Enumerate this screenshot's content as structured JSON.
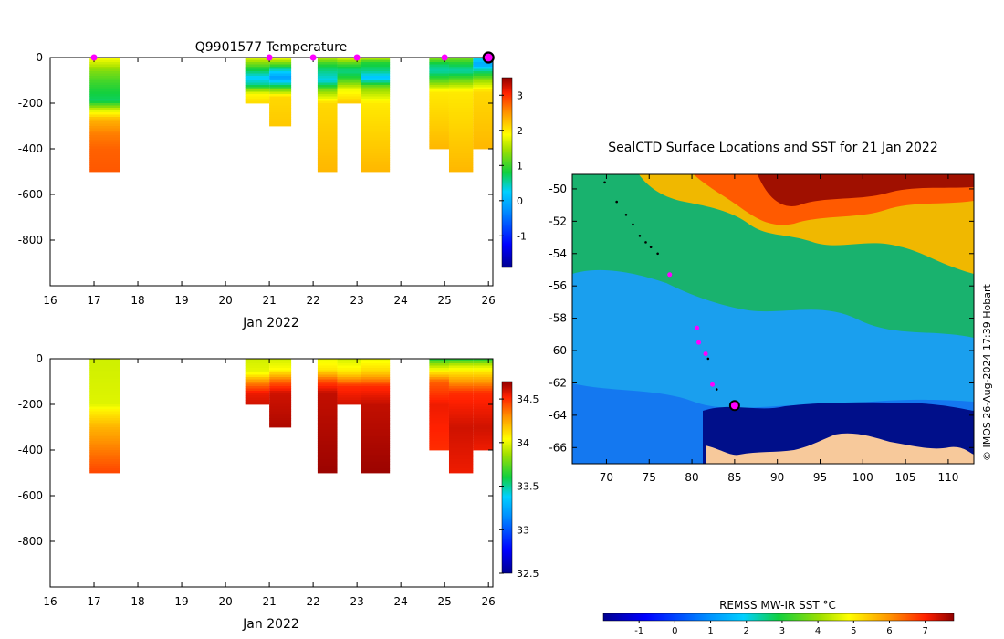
{
  "colors": {
    "land": "#f7c99b",
    "marker": "#ff00ff",
    "frame": "#000000"
  },
  "chart_data": [
    {
      "id": "temperature-section",
      "type": "heatmap",
      "title": "Q9901577  Temperature",
      "xlabel": "Jan 2022",
      "ylabel": "",
      "xlim": [
        16,
        26.1
      ],
      "ylim": [
        -1000,
        0
      ],
      "xticks": [
        "16",
        "17",
        "18",
        "19",
        "20",
        "21",
        "22",
        "23",
        "24",
        "25",
        "26"
      ],
      "yticks": [
        "0",
        "-200",
        "-400",
        "-600",
        "-800"
      ],
      "colorbar": {
        "min": -1.9,
        "max": 3.5,
        "ticks": [
          "-1",
          "0",
          "1",
          "2",
          "3"
        ]
      },
      "profile_markers_x": [
        17.0,
        21.0,
        22.0,
        23.0,
        25.0
      ],
      "latest_marker_x": 26.0,
      "profiles": [
        {
          "x0": 16.9,
          "x1": 17.6,
          "depth": 500,
          "levels": [
            [
              0,
              1.9
            ],
            [
              -30,
              1.6
            ],
            [
              -60,
              1.3
            ],
            [
              -110,
              1.0
            ],
            [
              -160,
              0.8
            ],
            [
              -190,
              0.7
            ],
            [
              -230,
              1.7
            ],
            [
              -270,
              2.3
            ],
            [
              -330,
              2.6
            ],
            [
              -400,
              2.75
            ],
            [
              -500,
              2.8
            ]
          ]
        },
        {
          "x0": 20.45,
          "x1": 21.0,
          "depth": 200,
          "levels": [
            [
              0,
              1.8
            ],
            [
              -30,
              1.2
            ],
            [
              -60,
              0.7
            ],
            [
              -90,
              0.2
            ],
            [
              -120,
              0.6
            ],
            [
              -160,
              1.9
            ],
            [
              -200,
              2.1
            ]
          ]
        },
        {
          "x0": 21.0,
          "x1": 21.5,
          "depth": 300,
          "levels": [
            [
              0,
              1.9
            ],
            [
              -30,
              1.1
            ],
            [
              -60,
              0.3
            ],
            [
              -90,
              -0.2
            ],
            [
              -130,
              0.9
            ],
            [
              -170,
              2.1
            ],
            [
              -300,
              2.2
            ]
          ]
        },
        {
          "x0": 22.1,
          "x1": 22.55,
          "depth": 500,
          "levels": [
            [
              0,
              1.6
            ],
            [
              -30,
              0.9
            ],
            [
              -60,
              0.6
            ],
            [
              -100,
              0.3
            ],
            [
              -150,
              1.4
            ],
            [
              -200,
              2.1
            ],
            [
              -500,
              2.3
            ]
          ]
        },
        {
          "x0": 22.55,
          "x1": 23.1,
          "depth": 200,
          "levels": [
            [
              0,
              1.8
            ],
            [
              -30,
              1.0
            ],
            [
              -60,
              0.6
            ],
            [
              -90,
              0.9
            ],
            [
              -140,
              1.8
            ],
            [
              -200,
              2.2
            ]
          ]
        },
        {
          "x0": 23.1,
          "x1": 23.75,
          "depth": 500,
          "levels": [
            [
              0,
              1.7
            ],
            [
              -20,
              0.9
            ],
            [
              -60,
              0.6
            ],
            [
              -90,
              0.1
            ],
            [
              -130,
              1.3
            ],
            [
              -200,
              2.0
            ],
            [
              -500,
              2.3
            ]
          ]
        },
        {
          "x0": 24.65,
          "x1": 25.1,
          "depth": 400,
          "levels": [
            [
              0,
              1.4
            ],
            [
              -30,
              0.7
            ],
            [
              -60,
              0.5
            ],
            [
              -100,
              1.1
            ],
            [
              -150,
              2.0
            ],
            [
              -400,
              2.3
            ]
          ]
        },
        {
          "x0": 25.1,
          "x1": 25.65,
          "depth": 500,
          "levels": [
            [
              0,
              1.3
            ],
            [
              -30,
              0.8
            ],
            [
              -60,
              0.5
            ],
            [
              -100,
              1.2
            ],
            [
              -150,
              2.0
            ],
            [
              -500,
              2.3
            ]
          ]
        },
        {
          "x0": 25.65,
          "x1": 26.1,
          "depth": 400,
          "levels": [
            [
              0,
              0.4
            ],
            [
              -30,
              -0.1
            ],
            [
              -60,
              0.6
            ],
            [
              -100,
              1.4
            ],
            [
              -150,
              2.1
            ],
            [
              -400,
              2.3
            ]
          ]
        }
      ]
    },
    {
      "id": "salinity-section",
      "type": "heatmap",
      "title": "",
      "xlabel": "Jan 2022",
      "ylabel": "",
      "xlim": [
        16,
        26.1
      ],
      "ylim": [
        -1000,
        0
      ],
      "xticks": [
        "16",
        "17",
        "18",
        "19",
        "20",
        "21",
        "22",
        "23",
        "24",
        "25",
        "26"
      ],
      "yticks": [
        "0",
        "-200",
        "-400",
        "-600",
        "-800"
      ],
      "colorbar": {
        "min": 32.5,
        "max": 34.7,
        "ticks": [
          "32.5",
          "33",
          "33.5",
          "34",
          "34.5"
        ]
      },
      "profiles": [
        {
          "x0": 16.9,
          "x1": 17.6,
          "depth": 500,
          "levels": [
            [
              0,
              33.95
            ],
            [
              -200,
              33.98
            ],
            [
              -230,
              34.08
            ],
            [
              -300,
              34.22
            ],
            [
              -380,
              34.32
            ],
            [
              -450,
              34.4
            ],
            [
              -500,
              34.45
            ]
          ]
        },
        {
          "x0": 20.45,
          "x1": 21.0,
          "depth": 200,
          "levels": [
            [
              0,
              33.95
            ],
            [
              -60,
              34.0
            ],
            [
              -100,
              34.3
            ],
            [
              -150,
              34.55
            ],
            [
              -200,
              34.6
            ]
          ]
        },
        {
          "x0": 21.0,
          "x1": 21.5,
          "depth": 300,
          "levels": [
            [
              0,
              33.95
            ],
            [
              -50,
              34.05
            ],
            [
              -100,
              34.4
            ],
            [
              -150,
              34.6
            ],
            [
              -300,
              34.65
            ]
          ]
        },
        {
          "x0": 22.1,
          "x1": 22.55,
          "depth": 500,
          "levels": [
            [
              0,
              34.0
            ],
            [
              -50,
              34.1
            ],
            [
              -100,
              34.45
            ],
            [
              -150,
              34.62
            ],
            [
              -500,
              34.68
            ]
          ]
        },
        {
          "x0": 22.55,
          "x1": 23.1,
          "depth": 200,
          "levels": [
            [
              0,
              33.95
            ],
            [
              -60,
              34.1
            ],
            [
              -120,
              34.5
            ],
            [
              -200,
              34.6
            ]
          ]
        },
        {
          "x0": 23.1,
          "x1": 23.75,
          "depth": 500,
          "levels": [
            [
              0,
              34.0
            ],
            [
              -60,
              34.15
            ],
            [
              -120,
              34.5
            ],
            [
              -200,
              34.62
            ],
            [
              -500,
              34.68
            ]
          ]
        },
        {
          "x0": 24.65,
          "x1": 25.1,
          "depth": 400,
          "levels": [
            [
              0,
              33.6
            ],
            [
              -30,
              33.9
            ],
            [
              -60,
              34.1
            ],
            [
              -100,
              34.4
            ],
            [
              -200,
              34.55
            ],
            [
              -400,
              34.5
            ]
          ]
        },
        {
          "x0": 25.1,
          "x1": 25.65,
          "depth": 500,
          "levels": [
            [
              0,
              33.6
            ],
            [
              -30,
              33.95
            ],
            [
              -80,
              34.2
            ],
            [
              -150,
              34.5
            ],
            [
              -300,
              34.6
            ],
            [
              -500,
              34.55
            ]
          ]
        },
        {
          "x0": 25.65,
          "x1": 26.1,
          "depth": 400,
          "levels": [
            [
              0,
              33.6
            ],
            [
              -30,
              33.95
            ],
            [
              -80,
              34.2
            ],
            [
              -150,
              34.5
            ],
            [
              -300,
              34.6
            ],
            [
              -400,
              34.55
            ]
          ]
        }
      ]
    },
    {
      "id": "sst-map",
      "type": "heatmap",
      "title": "SealCTD Surface Locations and SST for 21 Jan 2022",
      "xlabel": "",
      "ylabel": "",
      "xlim": [
        66,
        113
      ],
      "ylim": [
        -67,
        -49.1
      ],
      "xticks": [
        "70",
        "75",
        "80",
        "85",
        "90",
        "95",
        "100",
        "105",
        "110"
      ],
      "yticks": [
        "-50",
        "-52",
        "-54",
        "-56",
        "-58",
        "-60",
        "-62",
        "-64",
        "-66"
      ],
      "credit": "© IMOS 26-Aug-2024 17:39 Hobart",
      "colorbar": {
        "label": "REMSS MW-IR SST °C",
        "min": -2.0,
        "max": 7.8,
        "ticks": [
          "-1",
          "0",
          "1",
          "2",
          "3",
          "4",
          "5",
          "6",
          "7"
        ]
      },
      "track": [
        {
          "lon": 69.8,
          "lat": -49.6
        },
        {
          "lon": 71.2,
          "lat": -50.8
        },
        {
          "lon": 72.3,
          "lat": -51.6
        },
        {
          "lon": 73.1,
          "lat": -52.2
        },
        {
          "lon": 73.9,
          "lat": -52.9
        },
        {
          "lon": 74.6,
          "lat": -53.3
        },
        {
          "lon": 75.2,
          "lat": -53.6
        },
        {
          "lon": 76.0,
          "lat": -54.0
        },
        {
          "lon": 77.4,
          "lat": -55.3
        },
        {
          "lon": 80.6,
          "lat": -58.6
        },
        {
          "lon": 80.8,
          "lat": -59.5
        },
        {
          "lon": 81.6,
          "lat": -60.2
        },
        {
          "lon": 81.9,
          "lat": -60.5
        },
        {
          "lon": 82.4,
          "lat": -62.1
        },
        {
          "lon": 82.9,
          "lat": -62.4
        }
      ],
      "surface_markers": [
        {
          "lon": 77.4,
          "lat": -55.3
        },
        {
          "lon": 80.6,
          "lat": -58.6
        },
        {
          "lon": 80.8,
          "lat": -59.5
        },
        {
          "lon": 81.6,
          "lat": -60.2
        },
        {
          "lon": 82.4,
          "lat": -62.1
        }
      ],
      "latest_position": {
        "lon": 85.0,
        "lat": -63.4
      }
    }
  ]
}
